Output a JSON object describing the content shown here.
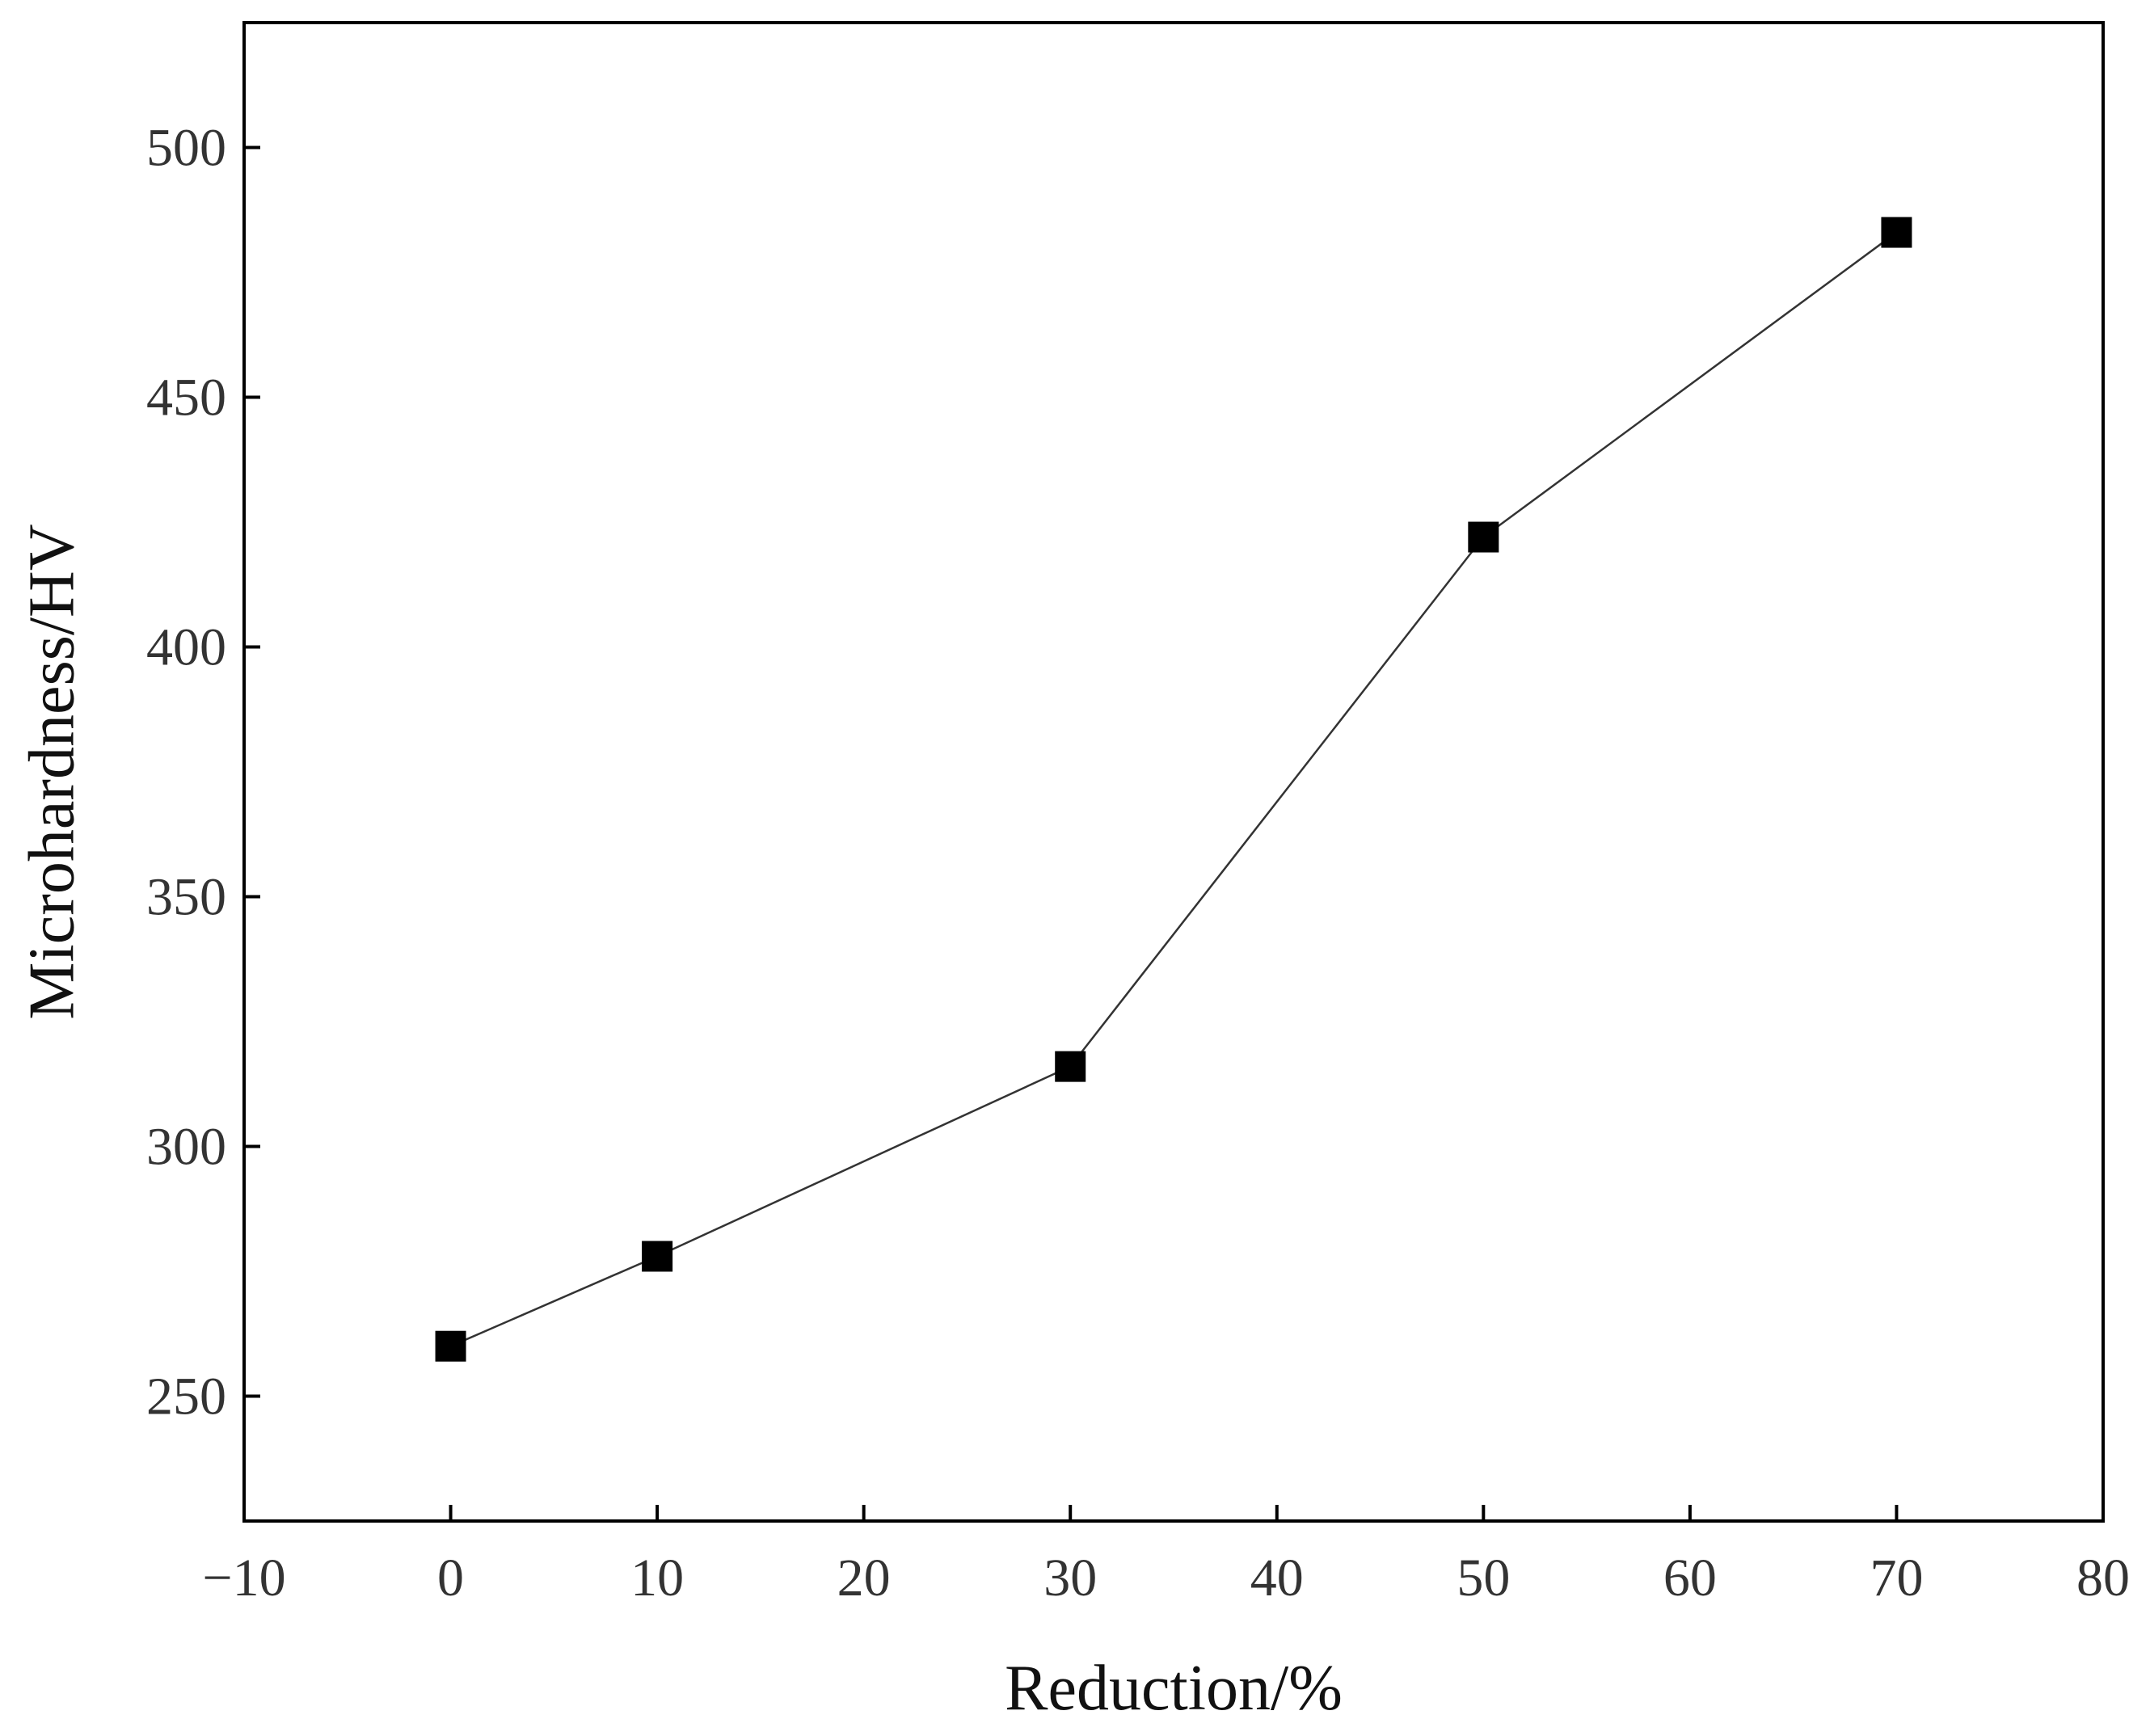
{
  "chart_data": {
    "type": "line",
    "title": "",
    "xlabel": "Reduction/%",
    "ylabel": "Microhardness/HV",
    "xlim": [
      -10,
      80
    ],
    "ylim": [
      225,
      525
    ],
    "xticks": [
      "−10",
      "0",
      "10",
      "20",
      "30",
      "40",
      "50",
      "60",
      "70",
      "80"
    ],
    "yticks": [
      "250",
      "300",
      "350",
      "400",
      "450",
      "500"
    ],
    "grid": false,
    "legend": "none",
    "marker": "square",
    "color": "#000000",
    "series": [
      {
        "x": [
          0,
          10,
          30,
          50,
          70
        ],
        "y": [
          260,
          278,
          316,
          422,
          483
        ]
      }
    ]
  }
}
